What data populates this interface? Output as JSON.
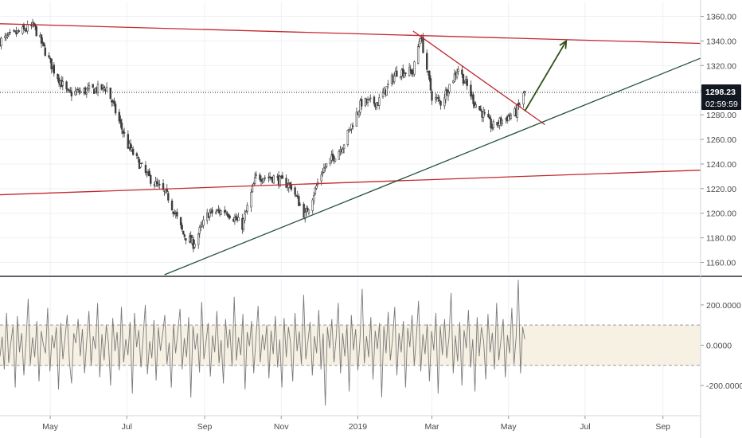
{
  "chart_data": [
    {
      "type": "candlestick",
      "pane": "price",
      "x_axis": {
        "tick_labels": [
          "May",
          "Jul",
          "Sep",
          "Nov",
          "2019",
          "Mar",
          "May",
          "Jul",
          "Sep"
        ],
        "range": [
          "2018-03-22",
          "2019-10-01"
        ]
      },
      "y_axis": {
        "tick_labels": [
          "1160.00",
          "1180.00",
          "1200.00",
          "1220.00",
          "1240.00",
          "1260.00",
          "1280.00",
          "1300.00",
          "1320.00",
          "1340.00",
          "1360.00"
        ],
        "ylim": [
          1150,
          1372
        ]
      },
      "grid": true,
      "current_price": {
        "value": 1298.23,
        "label": "1298.23",
        "countdown": "02:59:59"
      },
      "series": [
        {
          "x": [
            "2018-03-22",
            "2018-04-06",
            "2018-04-18",
            "2018-05-03",
            "2018-05-15",
            "2018-06-01",
            "2018-06-15",
            "2018-07-02",
            "2018-07-16",
            "2018-08-03",
            "2018-08-15",
            "2018-08-23",
            "2018-09-04",
            "2018-09-18",
            "2018-10-01",
            "2018-10-12",
            "2018-10-26",
            "2018-11-09",
            "2018-11-20",
            "2018-12-04",
            "2018-12-20",
            "2019-01-04",
            "2019-01-17",
            "2019-02-01",
            "2019-02-14",
            "2019-02-20",
            "2019-03-01",
            "2019-03-08",
            "2019-03-22",
            "2019-04-04",
            "2019-04-18",
            "2019-04-25",
            "2019-05-07",
            "2019-05-14"
          ],
          "values": [
            1340,
            1347,
            1352,
            1318,
            1297,
            1300,
            1302,
            1255,
            1232,
            1213,
            1183,
            1175,
            1200,
            1202,
            1190,
            1230,
            1229,
            1222,
            1198,
            1235,
            1255,
            1290,
            1290,
            1315,
            1315,
            1345,
            1295,
            1290,
            1318,
            1290,
            1270,
            1275,
            1282,
            1298
          ]
        }
      ]
    },
    {
      "type": "line",
      "pane": "oscillator",
      "y_axis": {
        "tick_labels": [
          "200.0000",
          "0.0000",
          "-200.0000"
        ],
        "ylim": [
          -350,
          330
        ]
      },
      "band": [
        -100,
        100
      ],
      "series": [
        {
          "values": [
            -56,
            42,
            -120,
            160,
            -88,
            12,
            95,
            -210,
            144,
            -35,
            60,
            -150,
            18,
            230,
            -96,
            40,
            -60,
            120,
            -180,
            70,
            2,
            -40,
            185,
            -130,
            50,
            -15,
            90,
            -220,
            110,
            -70,
            36,
            150,
            -80,
            -190,
            60,
            10,
            130,
            -55,
            80,
            -140,
            25,
            170,
            -100,
            45,
            -20,
            210,
            -160,
            55,
            -75,
            100,
            14,
            -200,
            135,
            -30,
            65,
            -125,
            190,
            -85,
            30,
            -50,
            115,
            -240,
            160,
            -10,
            75,
            -110,
            40,
            200,
            -145,
            20,
            -65,
            125,
            -175,
            88,
            -28,
            55,
            150,
            -95,
            12,
            -210,
            105,
            -40,
            70,
            180,
            -120,
            35,
            -60,
            140,
            -260,
            95,
            -22,
            60,
            -135,
            215,
            -70,
            18,
            110,
            -155,
            48,
            -35,
            170,
            -90,
            25,
            -190,
            130,
            -15,
            80,
            -105,
            240,
            -75,
            40,
            -50,
            155,
            -220,
            65,
            -5,
            120,
            -140,
            30,
            195,
            -85,
            52,
            -25,
            100,
            -165,
            72,
            -45,
            145,
            -110,
            28,
            -210,
            135,
            -60,
            90,
            10,
            -180,
            160,
            -30,
            68,
            -95,
            250,
            -70,
            20,
            115,
            -150,
            45,
            -40,
            175,
            -120,
            58,
            -300,
            90,
            -15,
            130,
            -85,
            35,
            210,
            -140,
            60,
            -55,
            100,
            -230,
            150,
            -25,
            80,
            -125,
            30,
            280,
            -90,
            45,
            -60,
            140,
            -170,
            72,
            -20,
            110,
            -260,
            95,
            -40,
            165,
            -75,
            25,
            190,
            -150,
            60,
            -35,
            120,
            -210,
            85,
            -10,
            150,
            -100,
            40,
            220,
            -130,
            55,
            -45,
            105,
            -180,
            70,
            -25,
            160,
            -240,
            95,
            -50,
            130,
            -65,
            35,
            260,
            -140,
            48,
            -80,
            115,
            -200,
            75,
            -15,
            175,
            -110,
            30,
            -230,
            140,
            -55,
            90,
            20,
            -170,
            155,
            -35,
            62,
            -120,
            210,
            -75,
            25,
            130,
            -160,
            50,
            -40,
            185,
            -95,
            40,
            325,
            -140,
            90,
            30
          ]
        }
      ]
    }
  ],
  "drawings": [
    {
      "kind": "trend-line",
      "color": "#c2282f",
      "from": [
        "2018-03-22",
        1354
      ],
      "to": [
        "2019-10-01",
        1338
      ]
    },
    {
      "kind": "trend-line",
      "color": "#c2282f",
      "from": [
        "2018-03-22",
        1215
      ],
      "to": [
        "2019-10-01",
        1235
      ]
    },
    {
      "kind": "trend-line",
      "color": "#c2282f",
      "from": [
        "2019-02-14",
        1348
      ],
      "to": [
        "2019-05-30",
        1272
      ]
    },
    {
      "kind": "trend-line",
      "color": "#26513b",
      "from": [
        "2018-07-31",
        1150
      ],
      "to": [
        "2019-10-01",
        1326
      ]
    },
    {
      "kind": "arrow",
      "color": "#2d5016",
      "from": [
        "2019-05-14",
        1283
      ],
      "to": [
        "2019-06-16",
        1340
      ]
    }
  ],
  "colors": {
    "candle_up": "#3d3d3d",
    "candle_down": "#3d3d3d",
    "resistance": "#c2282f",
    "support": "#26513b",
    "arrow": "#2d5016",
    "oscillator_line": "#7a7a7a",
    "oscillator_band": "#f6f1e3",
    "price_tag_bg": "#131722",
    "axis_text": "#4a4a4a"
  }
}
